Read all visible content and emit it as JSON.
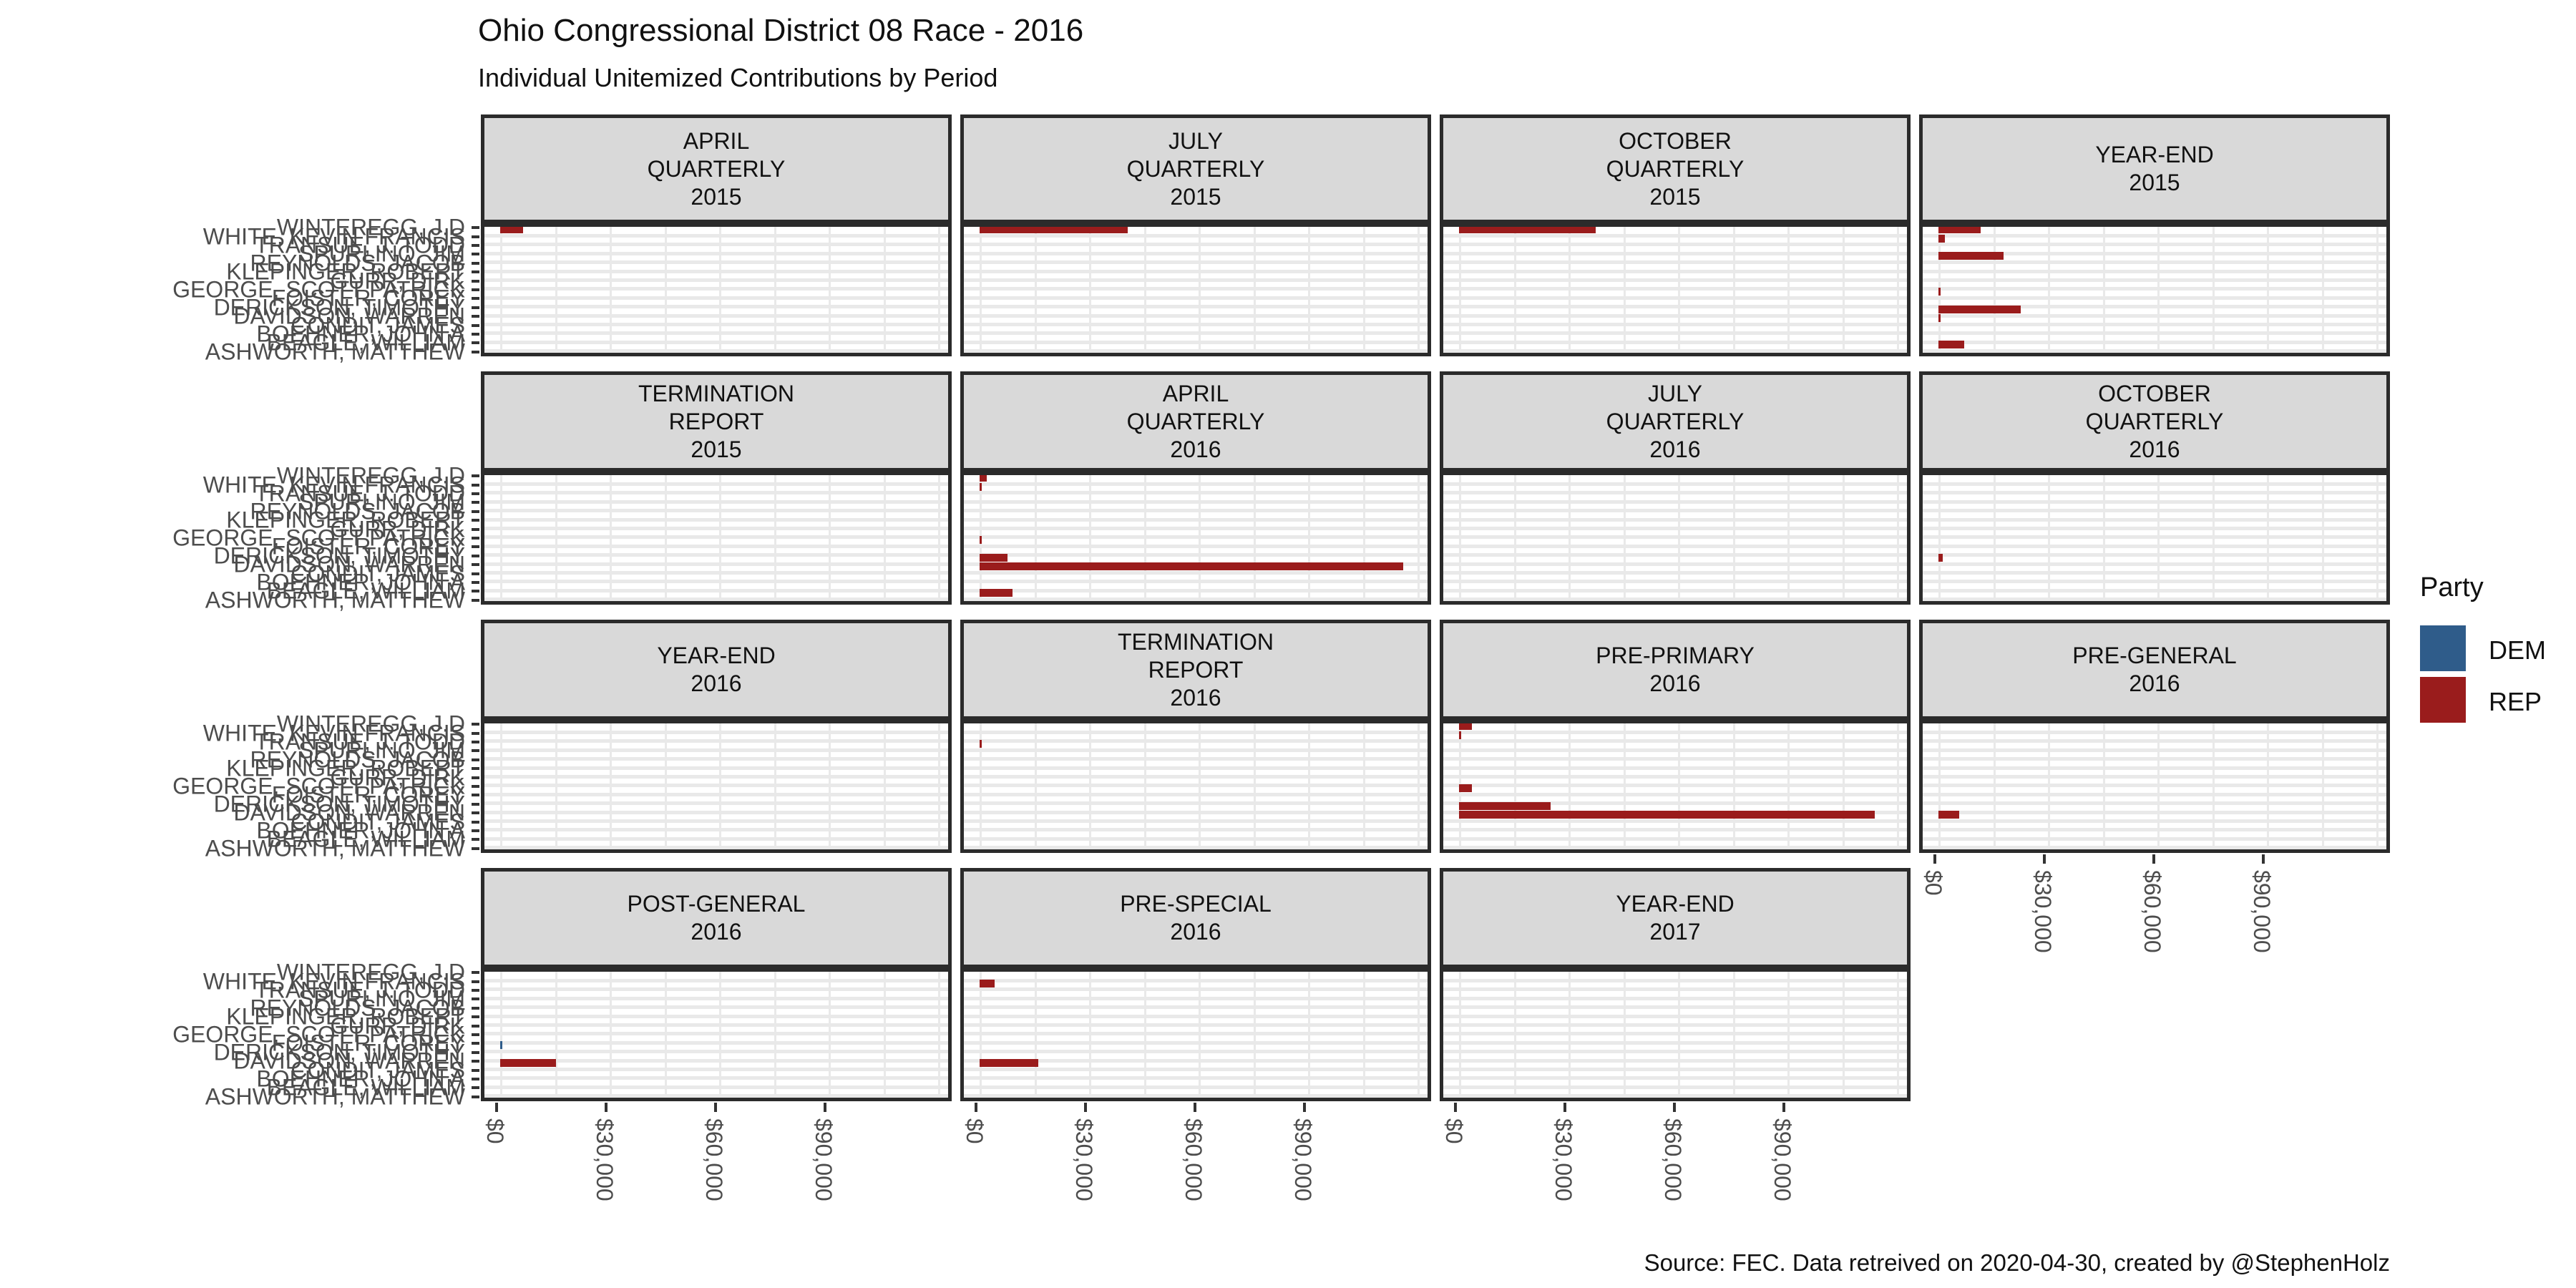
{
  "title": "Ohio Congressional District 08 Race - 2016",
  "subtitle": "Individual Unitemized Contributions by Period",
  "caption": "Source: FEC. Data retreived on 2020-04-30, created by @StephenHolz",
  "legend": {
    "title": "Party",
    "items": [
      {
        "label": "DEM",
        "color": "#2F5C8A"
      },
      {
        "label": "REP",
        "color": "#9A1C1C"
      }
    ]
  },
  "x_axis": {
    "tick_labels": [
      "$0",
      "$30,000",
      "$60,000",
      "$90,000"
    ],
    "tick_values": [
      0,
      30000,
      60000,
      90000
    ]
  },
  "chart_data": {
    "type": "bar",
    "orientation": "horizontal",
    "title": "Ohio Congressional District 08 Race - 2016",
    "subtitle": "Individual Unitemized Contributions by Period",
    "caption": "Source: FEC. Data retreived on 2020-04-30, created by @StephenHolz",
    "xlabel": "",
    "ylabel": "",
    "xlim": [
      0,
      124000
    ],
    "x_tick_values": [
      0,
      30000,
      60000,
      90000
    ],
    "x_tick_labels": [
      "$0",
      "$30,000",
      "$60,000",
      "$90,000"
    ],
    "grid": true,
    "legend_position": "right",
    "legend_title": "Party",
    "parties": {
      "DEM": "#2F5C8A",
      "REP": "#9A1C1C"
    },
    "categories_top_to_bottom": [
      "WINTEREGG, J.D",
      "WHITE, KEVIN FRANCIS",
      "TRANSUE, J. TODD",
      "SPURLINO, JIM",
      "REYNOLDS, JACOB",
      "KLEPINGER, ROBERT",
      "GURR, DIRK",
      "GEORGE, SCOTT PATRICK",
      "FOISTER, COREY",
      "DERICKSON, TIMOTHY",
      "DAVIDSON, WARREN",
      "CONDIT, JAMES",
      "BOEHNER, JOHN A",
      "BEAGLE, WILLIAM",
      "ASHWORTH, MATTHEW"
    ],
    "facets": [
      {
        "label": "APRIL\nQUARTERLY\n2015",
        "bars": [
          {
            "candidate": "WINTEREGG, J.D",
            "party": "REP",
            "value": 6200
          }
        ]
      },
      {
        "label": "JULY\nQUARTERLY\n2015",
        "bars": [
          {
            "candidate": "WINTEREGG, J.D",
            "party": "REP",
            "value": 40600
          }
        ]
      },
      {
        "label": "OCTOBER\nQUARTERLY\n2015",
        "bars": [
          {
            "candidate": "WINTEREGG, J.D",
            "party": "REP",
            "value": 37500
          }
        ]
      },
      {
        "label": "YEAR-END\n2015",
        "bars": [
          {
            "candidate": "WINTEREGG, J.D",
            "party": "REP",
            "value": 11600
          },
          {
            "candidate": "WHITE, KEVIN FRANCIS",
            "party": "REP",
            "value": 1800
          },
          {
            "candidate": "SPURLINO, JIM",
            "party": "REP",
            "value": 17800
          },
          {
            "candidate": "GEORGE, SCOTT PATRICK",
            "party": "REP",
            "value": 400
          },
          {
            "candidate": "DERICKSON, TIMOTHY",
            "party": "REP",
            "value": 22500
          },
          {
            "candidate": "DAVIDSON, WARREN",
            "party": "REP",
            "value": 400
          },
          {
            "candidate": "BEAGLE, WILLIAM",
            "party": "REP",
            "value": 7100
          }
        ]
      },
      {
        "label": "TERMINATION\nREPORT\n2015",
        "bars": []
      },
      {
        "label": "APRIL\nQUARTERLY\n2016",
        "bars": [
          {
            "candidate": "WINTEREGG, J.D",
            "party": "REP",
            "value": 2000
          },
          {
            "candidate": "WHITE, KEVIN FRANCIS",
            "party": "REP",
            "value": 300
          },
          {
            "candidate": "GEORGE, SCOTT PATRICK",
            "party": "REP",
            "value": 300
          },
          {
            "candidate": "DERICKSON, TIMOTHY",
            "party": "REP",
            "value": 7600
          },
          {
            "candidate": "DAVIDSON, WARREN",
            "party": "REP",
            "value": 116000
          },
          {
            "candidate": "BEAGLE, WILLIAM",
            "party": "REP",
            "value": 9000
          }
        ]
      },
      {
        "label": "JULY\nQUARTERLY\n2016",
        "bars": []
      },
      {
        "label": "OCTOBER\nQUARTERLY\n2016",
        "bars": [
          {
            "candidate": "DERICKSON, TIMOTHY",
            "party": "REP",
            "value": 1200
          }
        ]
      },
      {
        "label": "YEAR-END\n2016",
        "bars": []
      },
      {
        "label": "TERMINATION\nREPORT\n2016",
        "bars": [
          {
            "candidate": "TRANSUE, J. TODD",
            "party": "REP",
            "value": 250
          }
        ]
      },
      {
        "label": "PRE-PRIMARY\n2016",
        "bars": [
          {
            "candidate": "WINTEREGG, J.D",
            "party": "REP",
            "value": 3500
          },
          {
            "candidate": "WHITE, KEVIN FRANCIS",
            "party": "REP",
            "value": 300
          },
          {
            "candidate": "GEORGE, SCOTT PATRICK",
            "party": "REP",
            "value": 3500
          },
          {
            "candidate": "DERICKSON, TIMOTHY",
            "party": "REP",
            "value": 25000
          },
          {
            "candidate": "DAVIDSON, WARREN",
            "party": "REP",
            "value": 114000
          }
        ]
      },
      {
        "label": "PRE-GENERAL\n2016",
        "bars": [
          {
            "candidate": "DAVIDSON, WARREN",
            "party": "REP",
            "value": 5700
          }
        ]
      },
      {
        "label": "POST-GENERAL\n2016",
        "bars": [
          {
            "candidate": "FOISTER, COREY",
            "party": "DEM",
            "value": 200
          },
          {
            "candidate": "DAVIDSON, WARREN",
            "party": "REP",
            "value": 15300
          }
        ]
      },
      {
        "label": "PRE-SPECIAL\n2016",
        "bars": [
          {
            "candidate": "WHITE, KEVIN FRANCIS",
            "party": "REP",
            "value": 4100
          },
          {
            "candidate": "DAVIDSON, WARREN",
            "party": "REP",
            "value": 16100
          }
        ]
      },
      {
        "label": "YEAR-END\n2017",
        "bars": []
      }
    ]
  }
}
